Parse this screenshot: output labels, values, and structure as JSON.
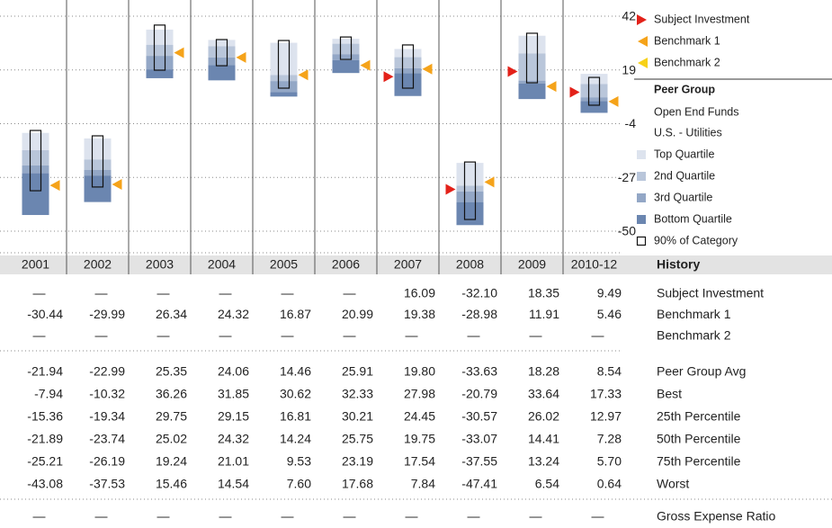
{
  "chart_data": {
    "type": "quartile-history",
    "years": [
      "2001",
      "2002",
      "2003",
      "2004",
      "2005",
      "2006",
      "2007",
      "2008",
      "2009",
      "2010-12"
    ],
    "ylim": [
      -50,
      42
    ],
    "yticks": [
      42,
      19,
      -4,
      -27,
      -50
    ],
    "series": [
      {
        "name": "Subject Investment",
        "color": "#e32119",
        "values": [
          null,
          null,
          null,
          null,
          null,
          null,
          16.09,
          -32.1,
          18.35,
          9.49
        ],
        "value_labels": [
          "—",
          "—",
          "—",
          "—",
          "—",
          "—",
          "16.09",
          "-32.10",
          "18.35",
          "9.49"
        ]
      },
      {
        "name": "Benchmark 1",
        "color": "#f5a31a",
        "values": [
          -30.44,
          -29.99,
          26.34,
          24.32,
          16.87,
          20.99,
          19.38,
          -28.98,
          11.91,
          5.46
        ],
        "value_labels": [
          "-30.44",
          "-29.99",
          "26.34",
          "24.32",
          "16.87",
          "20.99",
          "19.38",
          "-28.98",
          "11.91",
          "5.46"
        ]
      },
      {
        "name": "Benchmark 2",
        "color": "#f7d117",
        "values": [
          null,
          null,
          null,
          null,
          null,
          null,
          null,
          null,
          null,
          null
        ],
        "value_labels": [
          "—",
          "—",
          "—",
          "—",
          "—",
          "—",
          "—",
          "—",
          "—",
          "—"
        ]
      }
    ],
    "peer_group": {
      "title": "Peer Group",
      "universe": "Open End Funds",
      "category": "U.S. - Utilities"
    },
    "quartiles": [
      {
        "name": "Top Quartile",
        "color": "#dde3ee"
      },
      {
        "name": "2nd Quartile",
        "color": "#b9c6da"
      },
      {
        "name": "3rd Quartile",
        "color": "#93a7c6"
      },
      {
        "name": "Bottom Quartile",
        "color": "#6b86b0"
      }
    ],
    "range_name": "90% of Category",
    "range_high": [
      -6.9,
      -9.2,
      38.2,
      32.0,
      31.6,
      33.1,
      29.7,
      -20.4,
      34.7,
      15.8
    ],
    "range_low": [
      -32.7,
      -31.1,
      18.9,
      20.8,
      11.2,
      23.5,
      11.2,
      -45.0,
      13.5,
      3.9
    ],
    "table_title": "History",
    "stats": [
      {
        "name": "Peer Group Avg",
        "values": [
          -21.94,
          -22.99,
          25.35,
          24.06,
          14.46,
          25.91,
          19.8,
          -33.63,
          18.28,
          8.54
        ],
        "value_labels": [
          "-21.94",
          "-22.99",
          "25.35",
          "24.06",
          "14.46",
          "25.91",
          "19.80",
          "-33.63",
          "18.28",
          "8.54"
        ]
      },
      {
        "name": "Best",
        "values": [
          -7.94,
          -10.32,
          36.26,
          31.85,
          30.62,
          32.33,
          27.98,
          -20.79,
          33.64,
          17.33
        ],
        "value_labels": [
          "-7.94",
          "-10.32",
          "36.26",
          "31.85",
          "30.62",
          "32.33",
          "27.98",
          "-20.79",
          "33.64",
          "17.33"
        ]
      },
      {
        "name": "25th Percentile",
        "values": [
          -15.36,
          -19.34,
          29.75,
          29.15,
          16.81,
          30.21,
          24.45,
          -30.57,
          26.02,
          12.97
        ],
        "value_labels": [
          "-15.36",
          "-19.34",
          "29.75",
          "29.15",
          "16.81",
          "30.21",
          "24.45",
          "-30.57",
          "26.02",
          "12.97"
        ]
      },
      {
        "name": "50th Percentile",
        "values": [
          -21.89,
          -23.74,
          25.02,
          24.32,
          14.24,
          25.75,
          19.75,
          -33.07,
          14.41,
          7.28
        ],
        "value_labels": [
          "-21.89",
          "-23.74",
          "25.02",
          "24.32",
          "14.24",
          "25.75",
          "19.75",
          "-33.07",
          "14.41",
          "7.28"
        ]
      },
      {
        "name": "75th Percentile",
        "values": [
          -25.21,
          -26.19,
          19.24,
          21.01,
          9.53,
          23.19,
          17.54,
          -37.55,
          13.24,
          5.7
        ],
        "value_labels": [
          "-25.21",
          "-26.19",
          "19.24",
          "21.01",
          "9.53",
          "23.19",
          "17.54",
          "-37.55",
          "13.24",
          "5.70"
        ]
      },
      {
        "name": "Worst",
        "values": [
          -43.08,
          -37.53,
          15.46,
          14.54,
          7.6,
          17.68,
          7.84,
          -47.41,
          6.54,
          0.64
        ],
        "value_labels": [
          "-43.08",
          "-37.53",
          "15.46",
          "14.54",
          "7.60",
          "17.68",
          "7.84",
          "-47.41",
          "6.54",
          "0.64"
        ]
      }
    ],
    "expense": {
      "name": "Gross Expense Ratio",
      "values": [
        null,
        null,
        null,
        null,
        null,
        null,
        null,
        null,
        null,
        null
      ],
      "value_labels": [
        "—",
        "—",
        "—",
        "—",
        "—",
        "—",
        "—",
        "—",
        "—",
        "—"
      ]
    }
  }
}
